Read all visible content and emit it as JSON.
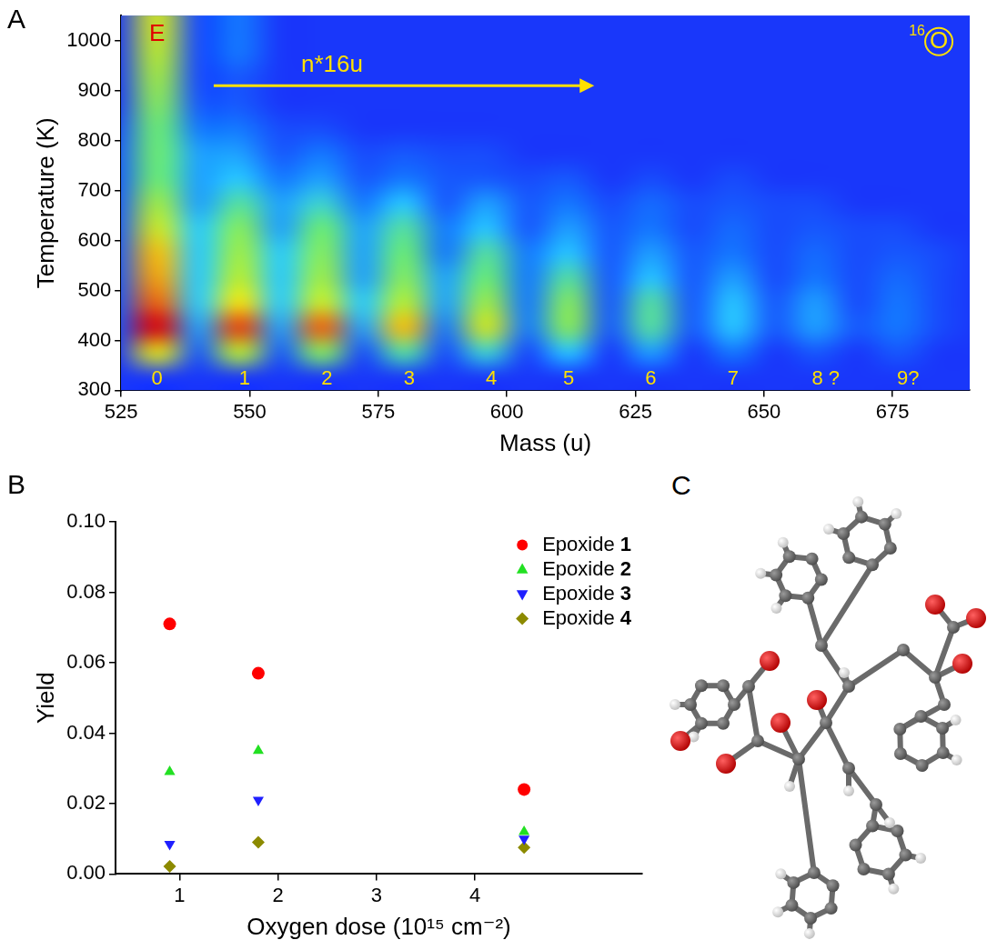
{
  "chart_data": [
    {
      "type": "heatmap",
      "panel_label": "A",
      "x_label": "Mass (u)",
      "y_label": "Temperature (K)",
      "xlim": [
        525,
        690
      ],
      "xticks": [
        525,
        550,
        575,
        600,
        625,
        650,
        675
      ],
      "ylim": [
        300,
        1050
      ],
      "yticks": [
        300,
        400,
        500,
        600,
        700,
        800,
        900,
        1000
      ],
      "grid": false,
      "zlim": [
        0,
        10
      ],
      "x_bins": [
        520,
        528,
        536,
        544,
        552,
        560,
        568,
        576,
        584,
        592,
        600,
        608,
        616,
        624,
        632,
        640,
        648,
        656,
        664,
        672,
        680,
        688,
        696
      ],
      "y_bins": [
        300,
        350,
        400,
        450,
        500,
        550,
        600,
        650,
        700,
        750,
        800,
        850,
        900,
        950,
        1000,
        1050
      ],
      "cells": [
        [
          0,
          0,
          0,
          0,
          0,
          0,
          0,
          0,
          0,
          0,
          0,
          0,
          0,
          0,
          0,
          0,
          0,
          0,
          0,
          0,
          0,
          0
        ],
        [
          0,
          6,
          0.5,
          5,
          0.5,
          4,
          0.3,
          3,
          0.3,
          2.5,
          0.2,
          2,
          0,
          1.5,
          0,
          1,
          0,
          0.5,
          0,
          0.5,
          0,
          0
        ],
        [
          0.5,
          10,
          1.5,
          9,
          1.5,
          8.5,
          1.5,
          7,
          1,
          5.5,
          1,
          4,
          0.5,
          3,
          0.5,
          2,
          0.5,
          1.5,
          0.5,
          1,
          0.3,
          0
        ],
        [
          0.5,
          8.5,
          2,
          6.5,
          2,
          5.5,
          2,
          5,
          1.5,
          4.5,
          1,
          4,
          0.5,
          3,
          0.5,
          2,
          0.5,
          1.5,
          0.3,
          1,
          0.3,
          0
        ],
        [
          0.5,
          7.5,
          2,
          5,
          2,
          4.5,
          1.5,
          4,
          1.5,
          3.5,
          1,
          3,
          0.5,
          2,
          0.5,
          1.5,
          0.3,
          1,
          0.3,
          0.8,
          0.3,
          0
        ],
        [
          0.5,
          7,
          2,
          4.5,
          2,
          4,
          1.5,
          3.5,
          1,
          3,
          1,
          2,
          0.5,
          1.5,
          0.5,
          1,
          0.3,
          0.8,
          0.3,
          0.5,
          0.3,
          0
        ],
        [
          0.5,
          5.5,
          2,
          4,
          1.5,
          3.5,
          1.5,
          3,
          1,
          2,
          0.5,
          1.5,
          0.5,
          1,
          0.3,
          0.8,
          0.3,
          0.5,
          0.3,
          0.3,
          0,
          0
        ],
        [
          0.5,
          4.5,
          1.5,
          3,
          1.5,
          2.5,
          1,
          2,
          0.5,
          1.5,
          0.5,
          1,
          0.3,
          0.8,
          0.3,
          0.5,
          0.3,
          0.3,
          0,
          0,
          0,
          0
        ],
        [
          0.5,
          3.5,
          1.5,
          2,
          1,
          1.5,
          0.5,
          1,
          0.5,
          0.5,
          0.3,
          0.5,
          0,
          0.3,
          0,
          0.3,
          0,
          0,
          0,
          0,
          0,
          0
        ],
        [
          0.5,
          3.5,
          1.5,
          1.5,
          0.5,
          1,
          0.3,
          0.5,
          0.3,
          0.3,
          0,
          0,
          0,
          0,
          0,
          0,
          0,
          0,
          0,
          0,
          0,
          0
        ],
        [
          0.3,
          3.5,
          1,
          1,
          0.3,
          0.3,
          0,
          0,
          0,
          0,
          0,
          0,
          0,
          0,
          0,
          0,
          0,
          0,
          0,
          0,
          0,
          0
        ],
        [
          0,
          4,
          0.5,
          0.5,
          0,
          0,
          0,
          0,
          0,
          0,
          0,
          0,
          0,
          0,
          0,
          0,
          0,
          0,
          0,
          0,
          0,
          0
        ],
        [
          0,
          4.5,
          0.3,
          0.5,
          0,
          0,
          0,
          0,
          0,
          0,
          0,
          0,
          0,
          0,
          0,
          0,
          0,
          0,
          0,
          0,
          0,
          0
        ],
        [
          0,
          5,
          0.3,
          1,
          0,
          0,
          0,
          0,
          0,
          0,
          0,
          0,
          0,
          0,
          0,
          0,
          0,
          0,
          0,
          0,
          0,
          0
        ],
        [
          0,
          5.5,
          0.3,
          1,
          0,
          0,
          0,
          0,
          0,
          0,
          0,
          0,
          0,
          0,
          0,
          0,
          0,
          0,
          0,
          0,
          0,
          0
        ]
      ],
      "annotations": [
        {
          "text": "E",
          "x": 532,
          "y": 1012,
          "color": "#e00000"
        },
        {
          "text": "n*16u",
          "x": 566,
          "y": 950,
          "color": "#ffe000"
        },
        {
          "text": "O",
          "superscript": "16",
          "x": 684,
          "y": 998,
          "color": "#ffe000",
          "marker": "circle"
        }
      ],
      "arrow": {
        "x": [
          543,
          617
        ],
        "y": 910,
        "color": "#ffe000"
      },
      "peak_labels": [
        {
          "text": "0",
          "x": 532,
          "y": 322
        },
        {
          "text": "1",
          "x": 549,
          "y": 322
        },
        {
          "text": "2",
          "x": 565,
          "y": 322
        },
        {
          "text": "3",
          "x": 581,
          "y": 322
        },
        {
          "text": "4",
          "x": 597,
          "y": 322
        },
        {
          "text": "5",
          "x": 612,
          "y": 322
        },
        {
          "text": "6",
          "x": 628,
          "y": 322
        },
        {
          "text": "7",
          "x": 644,
          "y": 322
        },
        {
          "text": "8 ?",
          "x": 662,
          "y": 322
        },
        {
          "text": "9?",
          "x": 678,
          "y": 322
        }
      ],
      "peak_label_color": "#ffe000"
    },
    {
      "type": "scatter",
      "panel_label": "B",
      "x_label": "Oxygen dose (10¹⁵ cm⁻²)",
      "y_label": "Yield",
      "xlim": [
        0.35,
        5.7
      ],
      "xticks": [
        1,
        2,
        3,
        4
      ],
      "ylim": [
        0,
        0.1
      ],
      "yticks": [
        {
          "value": 0,
          "label": "0.00"
        },
        {
          "value": 0.02,
          "label": "0.02"
        },
        {
          "value": 0.04,
          "label": "0.04"
        },
        {
          "value": 0.06,
          "label": "0.06"
        },
        {
          "value": 0.08,
          "label": "0.08"
        },
        {
          "value": 0.1,
          "label": "0.10"
        }
      ],
      "grid": false,
      "legend": "top-right",
      "x": [
        0.9,
        1.8,
        4.5
      ],
      "series": [
        {
          "name": "Epoxide 1",
          "color": "#ff0000",
          "marker": "circle",
          "values": [
            0.071,
            0.057,
            0.024
          ]
        },
        {
          "name": "Epoxide 2",
          "color": "#22e022",
          "marker": "triangle-up",
          "values": [
            0.029,
            0.035,
            0.012
          ]
        },
        {
          "name": "Epoxide 3",
          "color": "#1f1fff",
          "marker": "triangle-down",
          "values": [
            0.0085,
            0.021,
            0.01
          ]
        },
        {
          "name": "Epoxide 4",
          "color": "#8c8a00",
          "marker": "diamond",
          "values": [
            0.0022,
            0.009,
            0.0075
          ]
        }
      ]
    }
  ],
  "diagram": {
    "panel_label": "C"
  }
}
